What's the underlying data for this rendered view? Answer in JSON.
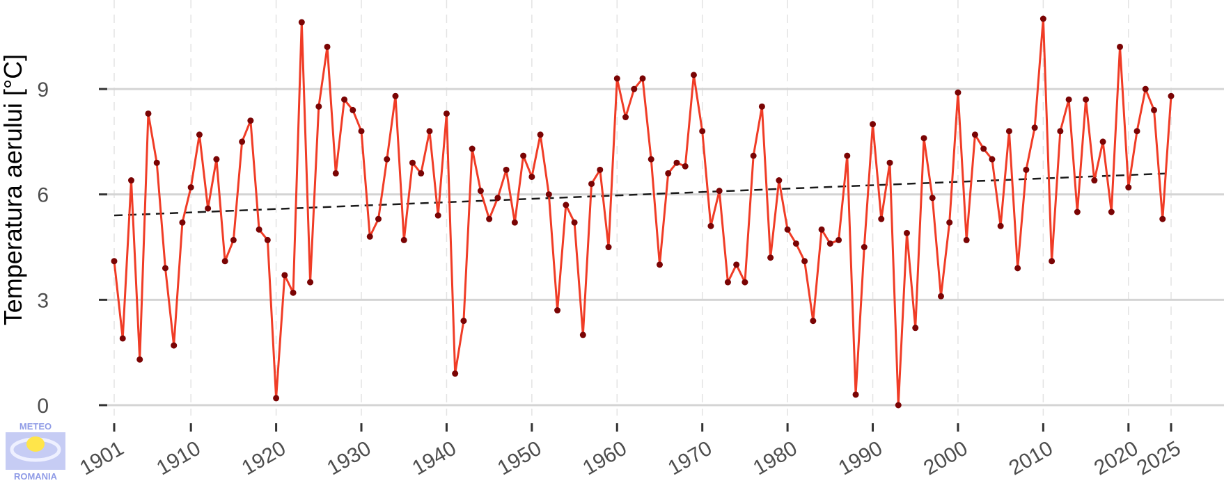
{
  "chart_data": {
    "type": "line",
    "title": "",
    "xlabel": "",
    "ylabel": "Temperatura aerului [°C]",
    "xlim": [
      1901,
      2025
    ],
    "ylim": [
      0,
      11
    ],
    "x_ticks": [
      1901,
      1910,
      1920,
      1930,
      1940,
      1950,
      1960,
      1970,
      1980,
      1990,
      2000,
      2010,
      2020,
      2025
    ],
    "y_ticks": [
      0,
      3,
      6,
      9
    ],
    "grid": {
      "horizontal": true,
      "vertical_dashed": true
    },
    "series": [
      {
        "x": [
          1901,
          1902,
          1903,
          1904,
          1905,
          1906,
          1907,
          1908,
          1909,
          1910,
          1911,
          1912,
          1913,
          1914,
          1915,
          1916,
          1917,
          1918,
          1919,
          1920,
          1921,
          1922,
          1923,
          1924,
          1925,
          1926,
          1927,
          1928,
          1929,
          1930,
          1931,
          1932,
          1933,
          1934,
          1935,
          1936,
          1937,
          1938,
          1939,
          1940,
          1941,
          1942,
          1943,
          1944,
          1945,
          1946,
          1947,
          1948,
          1949,
          1950,
          1951,
          1952,
          1953,
          1954,
          1955,
          1956,
          1957,
          1958,
          1959,
          1960,
          1961,
          1962,
          1963,
          1964,
          1965,
          1966,
          1967,
          1968,
          1969,
          1970,
          1971,
          1972,
          1973,
          1974,
          1975,
          1976,
          1977,
          1978,
          1979,
          1980,
          1981,
          1982,
          1983,
          1984,
          1985,
          1986,
          1987,
          1988,
          1989,
          1990,
          1991,
          1992,
          1993,
          1994,
          1995,
          1996,
          1997,
          1998,
          1999,
          2000,
          2001,
          2002,
          2003,
          2004,
          2005,
          2006,
          2007,
          2008,
          2009,
          2010,
          2011,
          2012,
          2013,
          2014,
          2015,
          2016,
          2017,
          2018,
          2019,
          2020,
          2021,
          2022,
          2023,
          2024,
          2025
        ],
        "values": [
          4.1,
          1.9,
          6.4,
          1.3,
          8.3,
          6.9,
          3.9,
          1.7,
          5.2,
          6.2,
          7.7,
          5.6,
          7.0,
          4.1,
          4.7,
          7.5,
          8.1,
          5.0,
          4.7,
          0.2,
          3.7,
          3.2,
          10.9,
          3.5,
          8.5,
          10.2,
          6.6,
          8.7,
          8.4,
          7.8,
          4.8,
          5.3,
          7.0,
          8.8,
          4.7,
          6.9,
          6.6,
          7.8,
          5.4,
          8.3,
          0.9,
          2.4,
          7.3,
          6.1,
          5.3,
          5.9,
          6.7,
          5.2,
          7.1,
          6.5,
          7.7,
          6.0,
          2.7,
          5.7,
          5.2,
          2.0,
          6.3,
          6.7,
          4.5,
          9.3,
          8.2,
          9.0,
          9.3,
          7.0,
          4.0,
          6.6,
          6.9,
          6.8,
          9.4,
          7.8,
          5.1,
          6.1,
          3.5,
          4.0,
          3.5,
          7.1,
          8.5,
          4.2,
          6.4,
          5.0,
          4.6,
          4.1,
          2.4,
          5.0,
          4.6,
          4.7,
          7.1,
          0.3,
          4.5,
          8.0,
          5.3,
          6.9,
          0.0,
          4.9,
          2.2,
          7.6,
          5.9,
          3.1,
          5.2,
          8.9,
          4.7,
          7.7,
          7.3,
          7.0,
          5.1,
          7.8,
          3.9,
          6.7,
          7.9,
          11.0,
          4.1,
          7.8,
          8.7,
          5.5,
          8.7,
          6.4,
          7.5,
          5.5,
          10.2,
          6.2,
          7.8,
          9.0,
          8.4,
          5.3,
          8.8
        ],
        "color": "#f03c26",
        "marker_color": "#7a0404"
      }
    ],
    "trend": {
      "x": [
        1901,
        2025
      ],
      "y": [
        5.4,
        6.6
      ],
      "style": "dashed",
      "color": "#1a1a1a"
    }
  },
  "logo": {
    "top_text": "METEO",
    "bottom_text": "ROMANIA"
  }
}
